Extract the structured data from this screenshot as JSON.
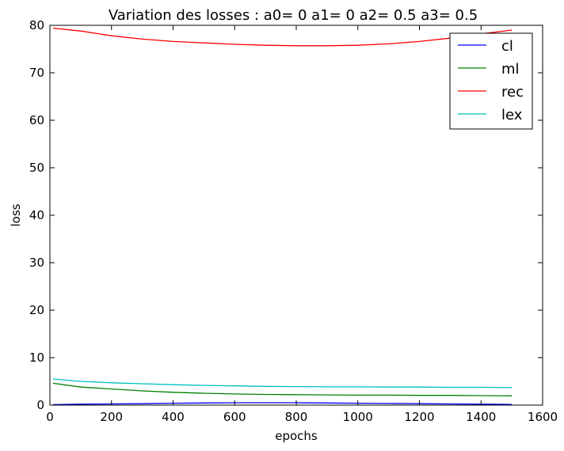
{
  "chart_data": {
    "type": "line",
    "title": "Variation des losses : a0= 0 a1= 0 a2= 0.5 a3= 0.5",
    "xlabel": "epochs",
    "ylabel": "loss",
    "xlim": [
      0,
      1600
    ],
    "ylim": [
      0,
      80
    ],
    "xticks": [
      0,
      200,
      400,
      600,
      800,
      1000,
      1200,
      1400,
      1600
    ],
    "yticks": [
      0,
      10,
      20,
      30,
      40,
      50,
      60,
      70,
      80
    ],
    "grid": false,
    "legend_position": "top-right",
    "x": [
      10,
      100,
      200,
      300,
      400,
      500,
      600,
      700,
      800,
      900,
      1000,
      1100,
      1200,
      1300,
      1400,
      1500
    ],
    "series": [
      {
        "name": "cl",
        "color": "#0000ff",
        "values": [
          0.1,
          0.2,
          0.25,
          0.3,
          0.4,
          0.45,
          0.5,
          0.5,
          0.5,
          0.45,
          0.4,
          0.35,
          0.3,
          0.25,
          0.2,
          0.15
        ]
      },
      {
        "name": "ml",
        "color": "#008000",
        "values": [
          4.6,
          3.8,
          3.4,
          3.0,
          2.7,
          2.5,
          2.35,
          2.25,
          2.2,
          2.15,
          2.1,
          2.1,
          2.05,
          2.05,
          2.0,
          1.95
        ]
      },
      {
        "name": "rec",
        "color": "#ff0000",
        "values": [
          79.4,
          78.8,
          77.8,
          77.1,
          76.6,
          76.3,
          76.0,
          75.8,
          75.7,
          75.7,
          75.8,
          76.1,
          76.6,
          77.3,
          78.2,
          79.0
        ]
      },
      {
        "name": "lex",
        "color": "#00bfbf",
        "values": [
          5.5,
          5.0,
          4.7,
          4.5,
          4.3,
          4.15,
          4.05,
          3.95,
          3.9,
          3.85,
          3.85,
          3.8,
          3.8,
          3.75,
          3.75,
          3.7
        ]
      }
    ]
  }
}
